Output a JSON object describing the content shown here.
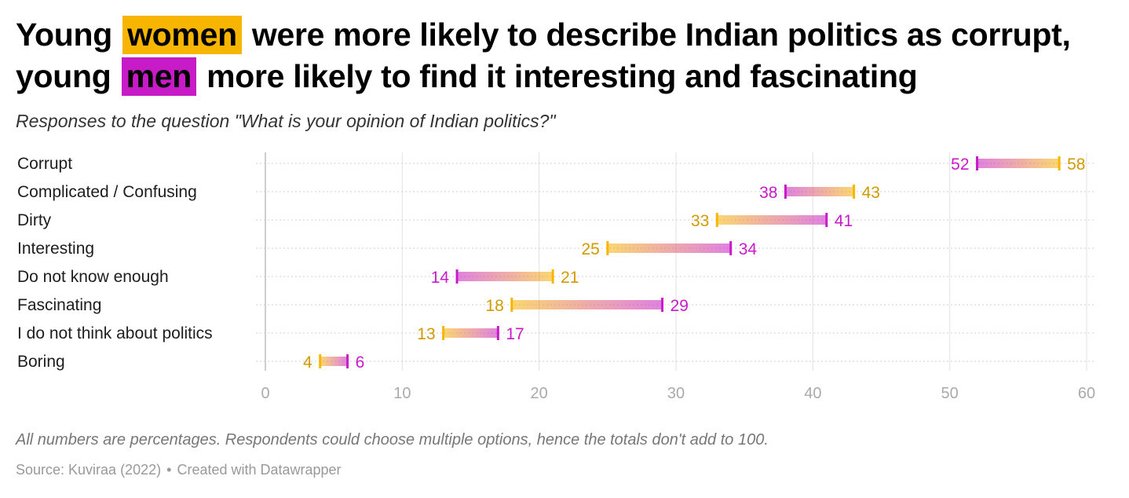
{
  "header": {
    "title_line1": [
      "Young",
      "women",
      "were more likely to describe Indian politics as corrupt,"
    ],
    "title_line2": [
      "young",
      "men",
      "more likely to find it interesting and fascinating"
    ],
    "women_color": "#f7b500",
    "men_color": "#c71bc7",
    "subtitle": "Responses to the question \"What is your opinion of Indian politics?\""
  },
  "footer": {
    "notes": "All numbers are percentages. Respondents could choose multiple options, hence the totals don't add to 100.",
    "source": "Source: Kuviraa (2022)",
    "separator": "•",
    "credit": "Created with Datawrapper"
  },
  "chart_data": {
    "type": "range-dot",
    "categories": [
      "Corrupt",
      "Complicated / Confusing",
      "Dirty",
      "Interesting",
      "Do not know enough",
      "Fascinating",
      "I do not think about politics",
      "Boring"
    ],
    "series": [
      {
        "name": "women",
        "color": "#f7b500",
        "label_color": "#d29a00",
        "values": [
          58,
          43,
          33,
          25,
          21,
          18,
          13,
          4
        ]
      },
      {
        "name": "men",
        "color": "#c71bc7",
        "label_color": "#c71bc7",
        "values": [
          52,
          38,
          41,
          34,
          14,
          29,
          17,
          6
        ]
      }
    ],
    "xlim": [
      0,
      60
    ],
    "xticks": [
      0,
      10,
      20,
      30,
      40,
      50,
      60
    ],
    "grid": true
  }
}
